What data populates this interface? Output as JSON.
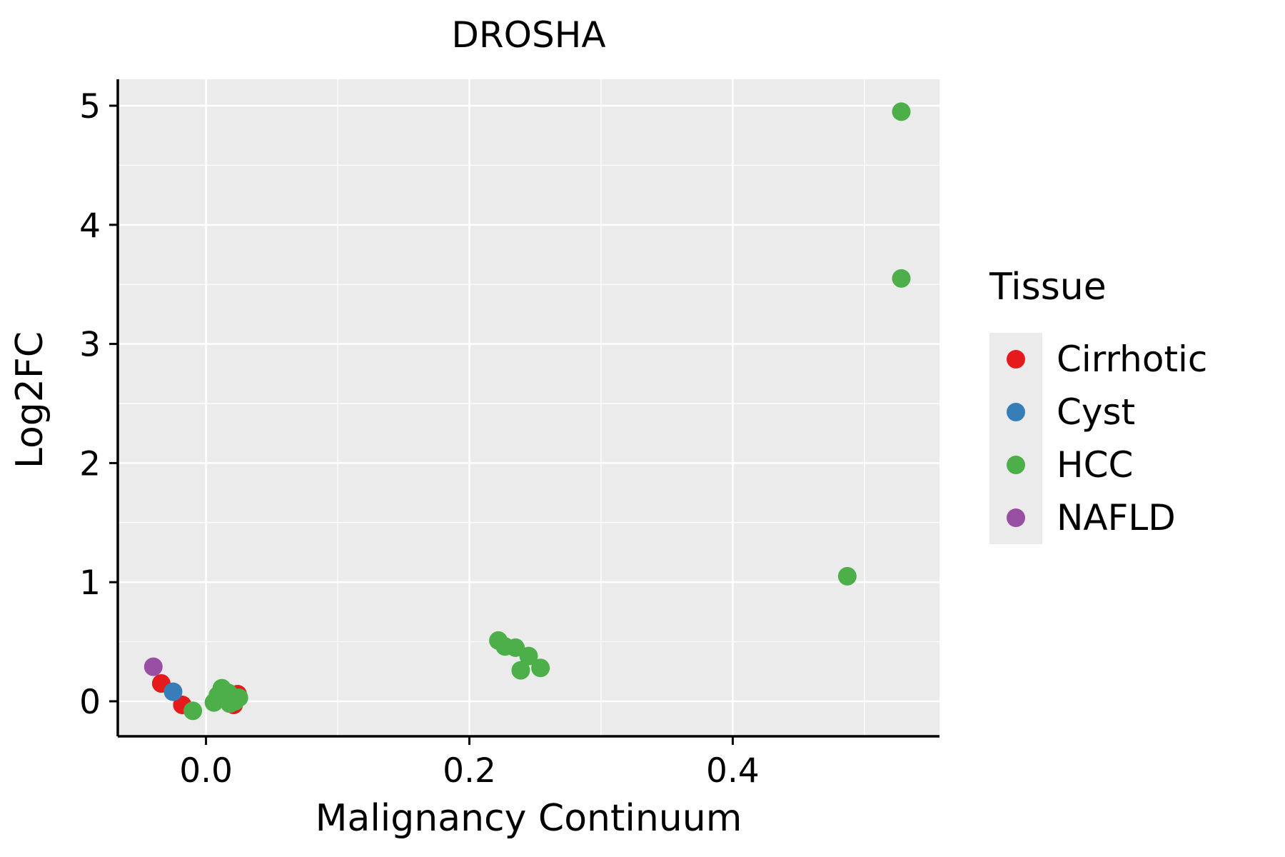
{
  "chart_data": {
    "type": "scatter",
    "title": "DROSHA",
    "xlabel": "Malignancy Continuum",
    "ylabel": "Log2FC",
    "legend_title": "Tissue",
    "legend_position": "right",
    "grid": true,
    "panel_background": "#EBEBEB",
    "grid_color": "#FFFFFF",
    "axis_color": "#000000",
    "xlim": [
      -0.067,
      0.557
    ],
    "ylim": [
      -0.294,
      5.222
    ],
    "x_ticks": [
      0.0,
      0.2,
      0.4
    ],
    "x_tick_labels": [
      "0.0",
      "0.2",
      "0.4"
    ],
    "x_minor_ticks": [
      0.1,
      0.3,
      0.5
    ],
    "y_ticks": [
      0,
      1,
      2,
      3,
      4,
      5
    ],
    "y_tick_labels": [
      "0",
      "1",
      "2",
      "3",
      "4",
      "5"
    ],
    "y_minor_ticks": [
      0.5,
      1.5,
      2.5,
      3.5,
      4.5
    ],
    "series": [
      {
        "name": "Cirrhotic",
        "color": "#E41A1C",
        "points": [
          [
            -0.034,
            0.15
          ],
          [
            -0.018,
            -0.03
          ],
          [
            0.024,
            0.06
          ],
          [
            0.021,
            -0.03
          ]
        ]
      },
      {
        "name": "Cyst",
        "color": "#377EB8",
        "points": [
          [
            -0.025,
            0.08
          ]
        ]
      },
      {
        "name": "HCC",
        "color": "#4DAF4A",
        "points": [
          [
            -0.01,
            -0.08
          ],
          [
            0.006,
            -0.01
          ],
          [
            0.009,
            0.05
          ],
          [
            0.012,
            0.11
          ],
          [
            0.014,
            0.02
          ],
          [
            0.017,
            0.07
          ],
          [
            0.018,
            -0.02
          ],
          [
            0.022,
            0.0
          ],
          [
            0.025,
            0.03
          ],
          [
            0.222,
            0.51
          ],
          [
            0.227,
            0.46
          ],
          [
            0.235,
            0.45
          ],
          [
            0.245,
            0.38
          ],
          [
            0.239,
            0.26
          ],
          [
            0.254,
            0.28
          ],
          [
            0.487,
            1.05
          ],
          [
            0.528,
            3.55
          ],
          [
            0.528,
            4.95
          ]
        ]
      },
      {
        "name": "NAFLD",
        "color": "#984EA3",
        "points": [
          [
            -0.04,
            0.29
          ]
        ]
      }
    ]
  }
}
